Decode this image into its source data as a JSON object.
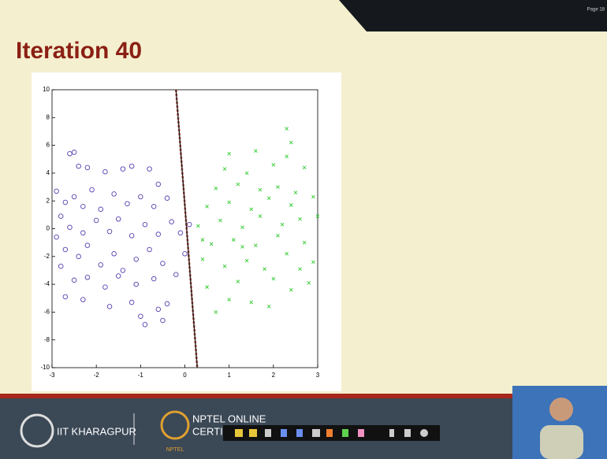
{
  "page_label": "Page 18",
  "slide_title": "Iteration 40",
  "footer": {
    "institute": "IIT KHARAGPUR",
    "course_line1": "NPTEL ONLINE",
    "course_line2": "CERTIFI",
    "logo_text": "NPTEL"
  },
  "chart_data": {
    "type": "scatter",
    "xlim": [
      -3,
      3
    ],
    "ylim": [
      -10,
      10
    ],
    "xticks": [
      -3,
      -2,
      -1,
      0,
      1,
      2,
      3
    ],
    "yticks": [
      -10,
      -8,
      -6,
      -4,
      -2,
      0,
      2,
      4,
      6,
      8,
      10
    ],
    "series": [
      {
        "marker": "o",
        "color": "#5a3fb0",
        "x": [
          -2.6,
          -2.5,
          -2.4,
          -2.2,
          -1.8,
          -1.4,
          -1.2,
          -0.8,
          -0.6,
          -2.9,
          -2.7,
          -2.5,
          -2.3,
          -2.1,
          -1.9,
          -1.6,
          -1.3,
          -1.0,
          -0.7,
          -0.4,
          -2.8,
          -2.6,
          -2.3,
          -2.0,
          -1.7,
          -1.5,
          -1.2,
          -0.9,
          -0.6,
          -0.3,
          -2.9,
          -2.7,
          -2.4,
          -2.2,
          -1.9,
          -1.6,
          -1.4,
          -1.1,
          -0.8,
          -0.5,
          -0.1,
          -2.8,
          -2.5,
          -2.2,
          -1.8,
          -1.5,
          -1.1,
          -0.7,
          -0.2,
          -2.7,
          -2.3,
          -1.7,
          -1.2,
          -0.6,
          -0.5,
          -0.9,
          -0.4,
          -1.0,
          0.0,
          0.1
        ],
        "y": [
          5.4,
          5.5,
          4.5,
          4.4,
          4.1,
          4.3,
          4.5,
          4.3,
          3.2,
          2.7,
          1.9,
          2.3,
          1.6,
          2.8,
          1.4,
          2.5,
          1.8,
          2.3,
          1.6,
          2.2,
          0.9,
          0.1,
          -0.3,
          0.6,
          -0.2,
          0.7,
          -0.5,
          0.3,
          -0.4,
          0.5,
          -0.6,
          -1.5,
          -2.0,
          -1.2,
          -2.6,
          -1.8,
          -3.0,
          -2.2,
          -1.5,
          -2.5,
          -0.3,
          -2.7,
          -3.7,
          -3.5,
          -4.2,
          -3.4,
          -4.0,
          -3.6,
          -3.3,
          -4.9,
          -5.1,
          -5.6,
          -5.3,
          -5.8,
          -6.6,
          -6.9,
          -5.4,
          -6.3,
          -1.8,
          0.3
        ]
      },
      {
        "marker": "x",
        "color": "#33cc33",
        "x": [
          0.7,
          1.0,
          1.5,
          1.9,
          2.4,
          2.8,
          0.5,
          1.2,
          2.0,
          2.6,
          0.4,
          0.9,
          1.4,
          1.8,
          2.3,
          2.9,
          0.6,
          1.1,
          1.6,
          2.1,
          2.7,
          0.3,
          0.8,
          1.3,
          1.7,
          2.2,
          2.6,
          0.5,
          1.0,
          1.5,
          1.9,
          2.4,
          2.9,
          0.7,
          1.2,
          1.7,
          2.1,
          2.5,
          0.9,
          1.4,
          2.0,
          2.7,
          1.0,
          1.6,
          2.3,
          2.4,
          2.3,
          0.4,
          3.0,
          1.3
        ],
        "y": [
          -6.0,
          -5.1,
          -5.3,
          -5.6,
          -4.4,
          -3.9,
          -4.2,
          -3.8,
          -3.6,
          -2.9,
          -2.2,
          -2.7,
          -2.3,
          -2.9,
          -1.8,
          -2.4,
          -1.1,
          -0.8,
          -1.2,
          -0.5,
          -1.0,
          0.2,
          0.6,
          0.1,
          0.9,
          0.3,
          0.7,
          1.6,
          1.9,
          1.4,
          2.2,
          1.7,
          2.3,
          2.9,
          3.2,
          2.8,
          3.0,
          2.6,
          4.3,
          4.0,
          4.6,
          4.4,
          5.4,
          5.6,
          5.2,
          6.2,
          7.2,
          -0.8,
          0.9,
          -1.3
        ]
      },
      {
        "marker": "line",
        "color": "#222222",
        "x": [
          -0.2,
          0.28
        ],
        "y": [
          10,
          -10
        ]
      }
    ]
  }
}
